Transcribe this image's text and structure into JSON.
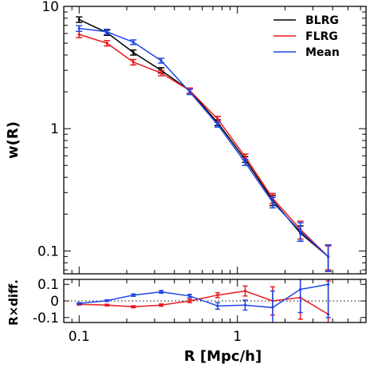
{
  "chart_data": [
    {
      "type": "line",
      "panel": "upper",
      "ylabel": "w(R)",
      "xscale": "log",
      "yscale": "log",
      "xlim": [
        0.08,
        6.5
      ],
      "ylim": [
        0.065,
        10
      ],
      "yticks": [
        {
          "value": 0.1,
          "label": "0.1"
        },
        {
          "value": 1,
          "label": "1"
        },
        {
          "value": 10,
          "label": "10"
        }
      ],
      "legend": {
        "placement": "top-right"
      },
      "series": [
        {
          "name": "BLRG",
          "color": "#000000",
          "x": [
            0.1,
            0.15,
            0.22,
            0.33,
            0.5,
            0.75,
            1.12,
            1.67,
            2.5,
            3.75
          ],
          "y": [
            7.8,
            6.1,
            4.2,
            3.0,
            2.05,
            1.12,
            0.56,
            0.26,
            0.14,
            0.09
          ],
          "err": [
            0.4,
            0.3,
            0.2,
            0.15,
            0.1,
            0.06,
            0.03,
            0.025,
            0.02,
            0.022
          ]
        },
        {
          "name": "FLRG",
          "color": "#e8191f",
          "x": [
            0.1,
            0.15,
            0.22,
            0.33,
            0.5,
            0.75,
            1.12,
            1.67,
            2.5,
            3.75
          ],
          "y": [
            5.9,
            5.0,
            3.5,
            2.85,
            2.05,
            1.2,
            0.59,
            0.27,
            0.15,
            0.09
          ],
          "err": [
            0.35,
            0.25,
            0.18,
            0.14,
            0.1,
            0.06,
            0.03,
            0.025,
            0.025,
            0.02
          ]
        },
        {
          "name": "Mean",
          "color": "#1f46e6",
          "x": [
            0.1,
            0.15,
            0.22,
            0.33,
            0.5,
            0.75,
            1.12,
            1.67,
            2.5,
            3.75
          ],
          "y": [
            6.6,
            6.2,
            5.1,
            3.6,
            2.0,
            1.08,
            0.53,
            0.25,
            0.145,
            0.09
          ],
          "err": [
            0.35,
            0.3,
            0.22,
            0.16,
            0.1,
            0.05,
            0.03,
            0.025,
            0.025,
            0.022
          ]
        }
      ]
    },
    {
      "type": "line",
      "panel": "lower",
      "ylabel": "R×diff.",
      "xlabel": "R [Mpc/h]",
      "xscale": "log",
      "xlim": [
        0.08,
        6.5
      ],
      "ylim": [
        -0.13,
        0.13
      ],
      "zero_line": "dotted",
      "xticks": [
        {
          "value": 0.1,
          "label": "0.1"
        },
        {
          "value": 1,
          "label": "1"
        }
      ],
      "yticks": [
        {
          "value": 0.1,
          "label": "0.1"
        },
        {
          "value": 0,
          "label": "0"
        },
        {
          "value": -0.1,
          "label": "-0.1"
        }
      ],
      "series": [
        {
          "name": "FLRG",
          "color": "#e8191f",
          "x": [
            0.1,
            0.15,
            0.22,
            0.33,
            0.5,
            0.75,
            1.12,
            1.67,
            2.5,
            3.75
          ],
          "y": [
            -0.02,
            -0.025,
            -0.035,
            -0.025,
            0.0,
            0.035,
            0.06,
            0.0,
            0.02,
            -0.08
          ],
          "err": [
            0.005,
            0.005,
            0.006,
            0.007,
            0.01,
            0.015,
            0.03,
            0.085,
            0.13,
            0.2
          ]
        },
        {
          "name": "Mean",
          "color": "#1f46e6",
          "x": [
            0.1,
            0.15,
            0.22,
            0.33,
            0.5,
            0.75,
            1.12,
            1.67,
            2.5,
            3.75
          ],
          "y": [
            -0.015,
            0.002,
            0.035,
            0.055,
            0.03,
            -0.03,
            -0.025,
            -0.04,
            0.07,
            0.1
          ],
          "err": [
            0.005,
            0.005,
            0.007,
            0.008,
            0.01,
            0.02,
            0.03,
            0.1,
            0.14,
            0.2
          ]
        }
      ]
    }
  ]
}
